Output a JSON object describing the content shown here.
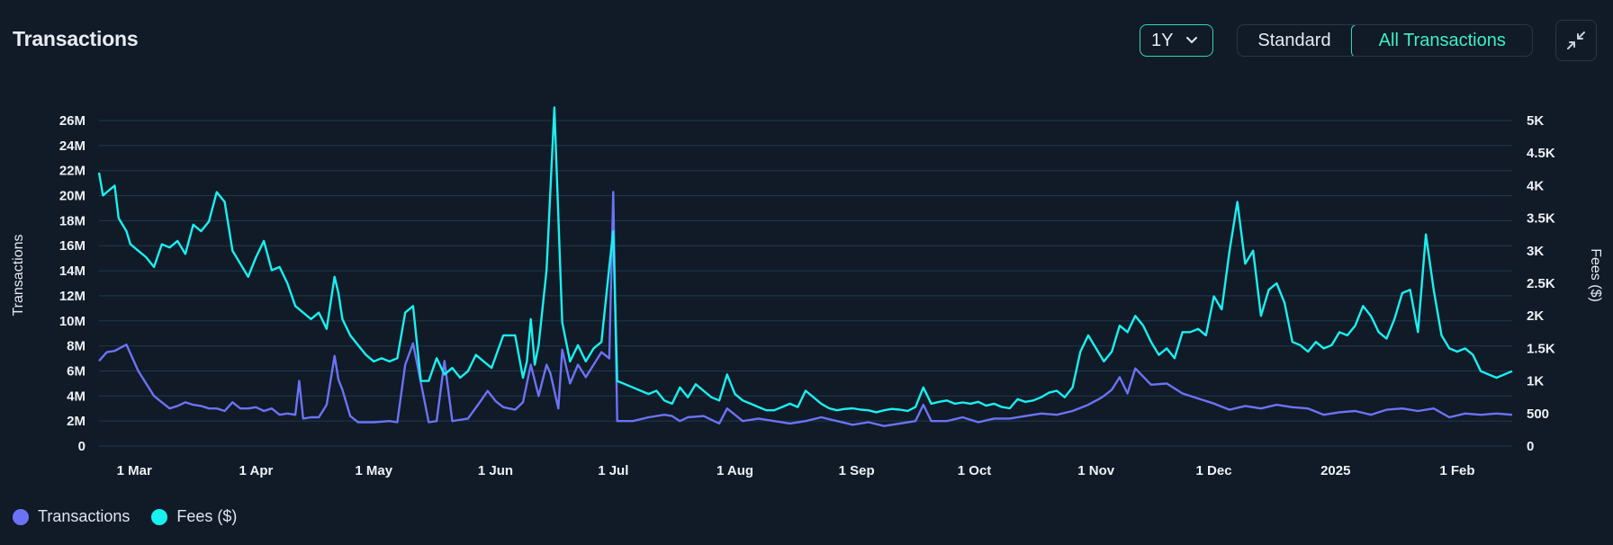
{
  "header": {
    "title": "Transactions",
    "range_value": "1Y",
    "view_options": [
      "Standard",
      "All Transactions"
    ],
    "selected_view": "All Transactions"
  },
  "colors": {
    "background": "#111a27",
    "transactions": "#6b73f5",
    "fees": "#19f0f0",
    "accent": "#2fd8b8",
    "grid": "#1d3a4f"
  },
  "icons": {
    "range_chevron": "chevron-down-icon",
    "collapse": "collapse-icon"
  },
  "chart_data": {
    "type": "line",
    "title": "Transactions",
    "ylabel": "Transactions",
    "ylabel_right": "Fees ($)",
    "ylim": [
      0,
      26000000
    ],
    "ylim_right": [
      0,
      5000
    ],
    "yticks": [
      "0",
      "2M",
      "4M",
      "6M",
      "8M",
      "10M",
      "12M",
      "14M",
      "16M",
      "18M",
      "20M",
      "22M",
      "24M",
      "26M"
    ],
    "yticks_right": [
      "0",
      "500",
      "1K",
      "1.5K",
      "2K",
      "2.5K",
      "3K",
      "3.5K",
      "4K",
      "4.5K",
      "5K"
    ],
    "x_tick_labels": [
      "1 Mar",
      "1 Apr",
      "1 May",
      "1 Jun",
      "1 Jul",
      "1 Aug",
      "1 Sep",
      "1 Oct",
      "1 Nov",
      "1 Dec",
      "2025",
      "1 Feb"
    ],
    "x_tick_days": [
      9,
      40,
      70,
      101,
      131,
      162,
      193,
      223,
      254,
      284,
      315,
      346
    ],
    "x_range_days": [
      0,
      360
    ],
    "grid": true,
    "legend_position": "bottom-left",
    "series": [
      {
        "name": "Transactions",
        "axis": "left",
        "x": [
          0,
          2,
          4,
          7,
          10,
          12,
          14,
          16,
          18,
          20,
          22,
          24,
          26,
          28,
          30,
          32,
          34,
          36,
          38,
          40,
          42,
          44,
          46,
          48,
          50,
          51,
          52,
          54,
          56,
          58,
          60,
          61,
          62,
          64,
          66,
          70,
          74,
          76,
          78,
          80,
          84,
          86,
          88,
          90,
          94,
          97,
          99,
          101,
          103,
          106,
          108,
          110,
          112,
          114,
          115,
          117,
          118,
          120,
          122,
          124,
          126,
          128,
          130,
          131,
          132,
          136,
          140,
          144,
          146,
          148,
          150,
          154,
          158,
          160,
          164,
          168,
          172,
          176,
          180,
          184,
          188,
          192,
          196,
          200,
          204,
          208,
          210,
          212,
          216,
          220,
          224,
          228,
          232,
          236,
          240,
          244,
          248,
          252,
          255,
          256,
          258,
          260,
          262,
          264,
          268,
          272,
          276,
          280,
          284,
          288,
          292,
          296,
          300,
          304,
          308,
          312,
          316,
          320,
          324,
          328,
          332,
          336,
          340,
          344,
          348,
          352,
          356,
          360
        ],
        "values": [
          6.8,
          7.5,
          7.6,
          8.1,
          6.0,
          5.0,
          4.0,
          3.5,
          3.0,
          3.2,
          3.5,
          3.3,
          3.2,
          3.0,
          3.0,
          2.8,
          3.5,
          3.0,
          3.0,
          3.1,
          2.8,
          3.0,
          2.5,
          2.6,
          2.5,
          5.2,
          2.2,
          2.3,
          2.3,
          3.3,
          7.2,
          5.3,
          4.5,
          2.4,
          1.9,
          1.9,
          2.0,
          1.9,
          6.5,
          8.2,
          1.9,
          2.0,
          6.8,
          2.0,
          2.2,
          3.5,
          4.4,
          3.6,
          3.1,
          2.9,
          3.5,
          6.5,
          4.0,
          6.5,
          5.8,
          3.0,
          7.7,
          5.0,
          6.5,
          5.5,
          6.5,
          7.5,
          7.0,
          20.3,
          2.0,
          2.0,
          2.3,
          2.5,
          2.4,
          2.0,
          2.3,
          2.4,
          1.8,
          3.0,
          2.0,
          2.2,
          2.0,
          1.8,
          2.0,
          2.3,
          2.0,
          1.7,
          1.9,
          1.6,
          1.8,
          2.0,
          3.3,
          2.0,
          2.0,
          2.3,
          1.9,
          2.2,
          2.2,
          2.4,
          2.6,
          2.5,
          2.8,
          3.3,
          3.8,
          4.0,
          4.5,
          5.5,
          4.2,
          6.2,
          4.9,
          5.0,
          4.2,
          3.8,
          3.4,
          2.9,
          3.2,
          3.0,
          3.3,
          3.1,
          3.0,
          2.5,
          2.7,
          2.8,
          2.5,
          2.9,
          3.0,
          2.8,
          3.0,
          2.3,
          2.6,
          2.5,
          2.6,
          2.5
        ]
      },
      {
        "name": "Fees ($)",
        "axis": "right",
        "x": [
          0,
          1,
          2,
          4,
          5,
          7,
          8,
          10,
          12,
          14,
          16,
          18,
          20,
          22,
          24,
          26,
          28,
          30,
          32,
          34,
          36,
          38,
          40,
          42,
          44,
          46,
          48,
          50,
          52,
          54,
          56,
          58,
          60,
          61,
          62,
          64,
          66,
          68,
          70,
          72,
          74,
          76,
          78,
          80,
          82,
          84,
          86,
          88,
          90,
          92,
          94,
          96,
          98,
          100,
          103,
          106,
          108,
          109,
          110,
          111,
          112,
          114,
          116,
          118,
          120,
          122,
          124,
          126,
          128,
          130,
          131,
          132,
          134,
          136,
          138,
          140,
          142,
          144,
          146,
          148,
          150,
          152,
          154,
          156,
          158,
          160,
          162,
          164,
          166,
          168,
          170,
          172,
          174,
          176,
          178,
          180,
          182,
          184,
          186,
          188,
          190,
          192,
          194,
          196,
          198,
          200,
          202,
          204,
          206,
          208,
          210,
          212,
          214,
          216,
          218,
          220,
          222,
          224,
          226,
          228,
          230,
          232,
          234,
          236,
          238,
          240,
          242,
          244,
          246,
          248,
          250,
          252,
          254,
          256,
          258,
          260,
          262,
          264,
          266,
          268,
          270,
          272,
          274,
          276,
          278,
          280,
          282,
          284,
          286,
          288,
          290,
          292,
          294,
          296,
          298,
          300,
          302,
          304,
          306,
          308,
          310,
          312,
          314,
          316,
          318,
          320,
          322,
          324,
          326,
          328,
          330,
          332,
          334,
          336,
          338,
          340,
          342,
          344,
          346,
          348,
          350,
          352,
          354,
          356,
          358,
          360
        ],
        "values": [
          4.2,
          3.85,
          3.9,
          4.0,
          3.5,
          3.3,
          3.1,
          3.0,
          2.9,
          2.75,
          3.1,
          3.05,
          3.15,
          2.95,
          3.4,
          3.3,
          3.45,
          3.9,
          3.75,
          3.0,
          2.8,
          2.6,
          2.9,
          3.15,
          2.7,
          2.75,
          2.5,
          2.15,
          2.05,
          1.95,
          2.05,
          1.8,
          2.6,
          2.35,
          1.95,
          1.7,
          1.55,
          1.4,
          1.3,
          1.35,
          1.3,
          1.35,
          2.05,
          2.15,
          1.0,
          1.0,
          1.35,
          1.1,
          1.2,
          1.05,
          1.15,
          1.4,
          1.3,
          1.2,
          1.7,
          1.7,
          1.05,
          1.3,
          1.95,
          1.25,
          1.55,
          2.7,
          5.2,
          1.9,
          1.3,
          1.55,
          1.3,
          1.5,
          1.6,
          2.75,
          3.3,
          1.0,
          0.95,
          0.9,
          0.85,
          0.8,
          0.85,
          0.7,
          0.65,
          0.9,
          0.75,
          0.95,
          0.85,
          0.75,
          0.7,
          1.1,
          0.8,
          0.7,
          0.65,
          0.6,
          0.55,
          0.55,
          0.6,
          0.65,
          0.6,
          0.85,
          0.75,
          0.65,
          0.58,
          0.55,
          0.57,
          0.58,
          0.56,
          0.55,
          0.52,
          0.55,
          0.57,
          0.56,
          0.54,
          0.6,
          0.9,
          0.65,
          0.68,
          0.7,
          0.65,
          0.67,
          0.65,
          0.68,
          0.62,
          0.65,
          0.6,
          0.58,
          0.72,
          0.68,
          0.7,
          0.75,
          0.82,
          0.85,
          0.75,
          0.9,
          1.45,
          1.7,
          1.5,
          1.3,
          1.45,
          1.85,
          1.75,
          2.0,
          1.85,
          1.6,
          1.4,
          1.5,
          1.35,
          1.75,
          1.75,
          1.8,
          1.7,
          2.3,
          2.1,
          3.0,
          3.75,
          2.8,
          3.0,
          2.0,
          2.4,
          2.5,
          2.2,
          1.6,
          1.55,
          1.45,
          1.6,
          1.5,
          1.55,
          1.75,
          1.7,
          1.85,
          2.15,
          2.0,
          1.75,
          1.65,
          1.95,
          2.35,
          2.4,
          1.75,
          3.25,
          2.4,
          1.7,
          1.5,
          1.45,
          1.5,
          1.4,
          1.15,
          1.1,
          1.05,
          1.1,
          1.15
        ]
      }
    ]
  }
}
